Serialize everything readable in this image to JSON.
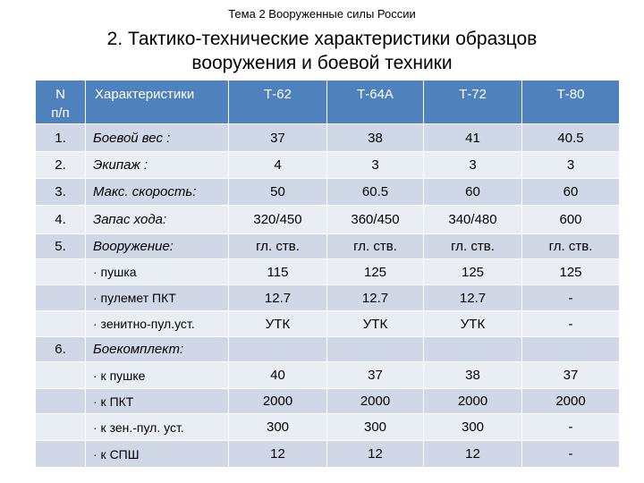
{
  "topic": "Тема 2 Вооруженные силы России",
  "title_line1": "2. Тактико-технические характеристики образцов",
  "title_line2": "вооружения и боевой техники",
  "table": {
    "headers": {
      "num_line1": "N",
      "num_line2": "п/п",
      "characteristics": "Характеристики",
      "t62": "Т-62",
      "t64a": "Т-64А",
      "t72": "Т-72",
      "t80": "Т-80"
    },
    "rows": [
      {
        "num": "1.",
        "label": "Боевой вес :",
        "values": [
          "37",
          "38",
          "41",
          "40.5"
        ]
      },
      {
        "num": "2.",
        "label": "Экипаж :",
        "values": [
          "4",
          "3",
          "3",
          "3"
        ]
      },
      {
        "num": "3.",
        "label": "Макс. скорость:",
        "values": [
          "50",
          "60.5",
          "60",
          "60"
        ]
      },
      {
        "num": "4.",
        "label": "Запас хода:",
        "values": [
          "320/450",
          "360/450",
          "340/480",
          "600"
        ]
      },
      {
        "num": "5.",
        "label": "Вооружение:",
        "values": [
          "гл. ств.",
          "гл. ств.",
          "гл. ств.",
          "гл. ств."
        ]
      },
      {
        "num": "",
        "label": "· пушка",
        "values": [
          "115",
          "125",
          "125",
          "125"
        ]
      },
      {
        "num": "",
        "label": "· пулемет ПКТ",
        "values": [
          "12.7",
          "12.7",
          "12.7",
          "-"
        ]
      },
      {
        "num": "",
        "label": "· зенитно-пул.уст.",
        "values": [
          "УТК",
          "УТК",
          "УТК",
          "-"
        ]
      },
      {
        "num": "6.",
        "label": "Боекомплект:",
        "values": [
          "",
          "",
          "",
          ""
        ]
      },
      {
        "num": "",
        "label": "· к пушке",
        "values": [
          "40",
          "37",
          "38",
          "37"
        ]
      },
      {
        "num": "",
        "label": "· к ПКТ",
        "values": [
          "2000",
          "2000",
          "2000",
          "2000"
        ]
      },
      {
        "num": "",
        "label": "· к зен.-пул. уст.",
        "values": [
          "300",
          "300",
          "300",
          "-"
        ]
      },
      {
        "num": "",
        "label": "· к СПШ",
        "values": [
          "12",
          "12",
          "12",
          "-"
        ]
      }
    ]
  }
}
